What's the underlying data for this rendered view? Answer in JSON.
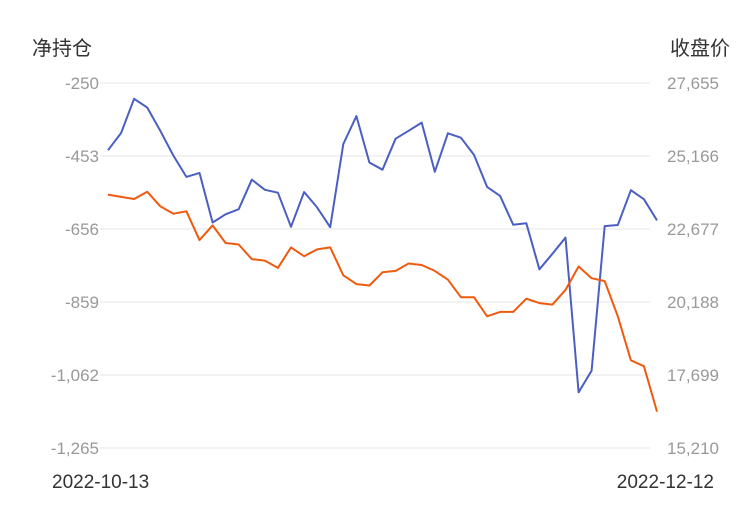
{
  "chart_data": {
    "type": "line",
    "left_axis_title": "净持仓",
    "right_axis_title": "收盘价",
    "left_ticks": [
      "-250",
      "-453",
      "-656",
      "-859",
      "-1,062",
      "-1,265"
    ],
    "right_ticks": [
      "27,655",
      "25,166",
      "22,677",
      "20,188",
      "17,699",
      "15,210"
    ],
    "left_range": [
      -1265,
      -250
    ],
    "right_range": [
      15210,
      27655
    ],
    "x_start_label": "2022-10-13",
    "x_end_label": "2022-12-12",
    "grid": true,
    "legend": "none",
    "series": [
      {
        "axis": "left",
        "color": "#4a5fc1",
        "values": [
          -437,
          -389,
          -294,
          -318,
          -383,
          -452,
          -511,
          -500,
          -638,
          -615,
          -601,
          -519,
          -547,
          -555,
          -650,
          -553,
          -596,
          -651,
          -420,
          -342,
          -471,
          -491,
          -405,
          -383,
          -360,
          -497,
          -390,
          -402,
          -450,
          -539,
          -564,
          -644,
          -640,
          -768,
          -725,
          -680,
          -1110,
          -1050,
          -648,
          -645,
          -548,
          -573,
          -632
        ]
      },
      {
        "axis": "right",
        "color": "#f05a0f",
        "values": [
          23850,
          23770,
          23700,
          23950,
          23450,
          23200,
          23280,
          22300,
          22800,
          22200,
          22150,
          21650,
          21600,
          21350,
          22050,
          21750,
          21980,
          22050,
          21100,
          20800,
          20750,
          21200,
          21250,
          21500,
          21450,
          21250,
          20950,
          20350,
          20350,
          19700,
          19850,
          19850,
          20300,
          20150,
          20100,
          20600,
          21400,
          21000,
          20900,
          19700,
          18200,
          18000,
          16450
        ]
      }
    ]
  }
}
